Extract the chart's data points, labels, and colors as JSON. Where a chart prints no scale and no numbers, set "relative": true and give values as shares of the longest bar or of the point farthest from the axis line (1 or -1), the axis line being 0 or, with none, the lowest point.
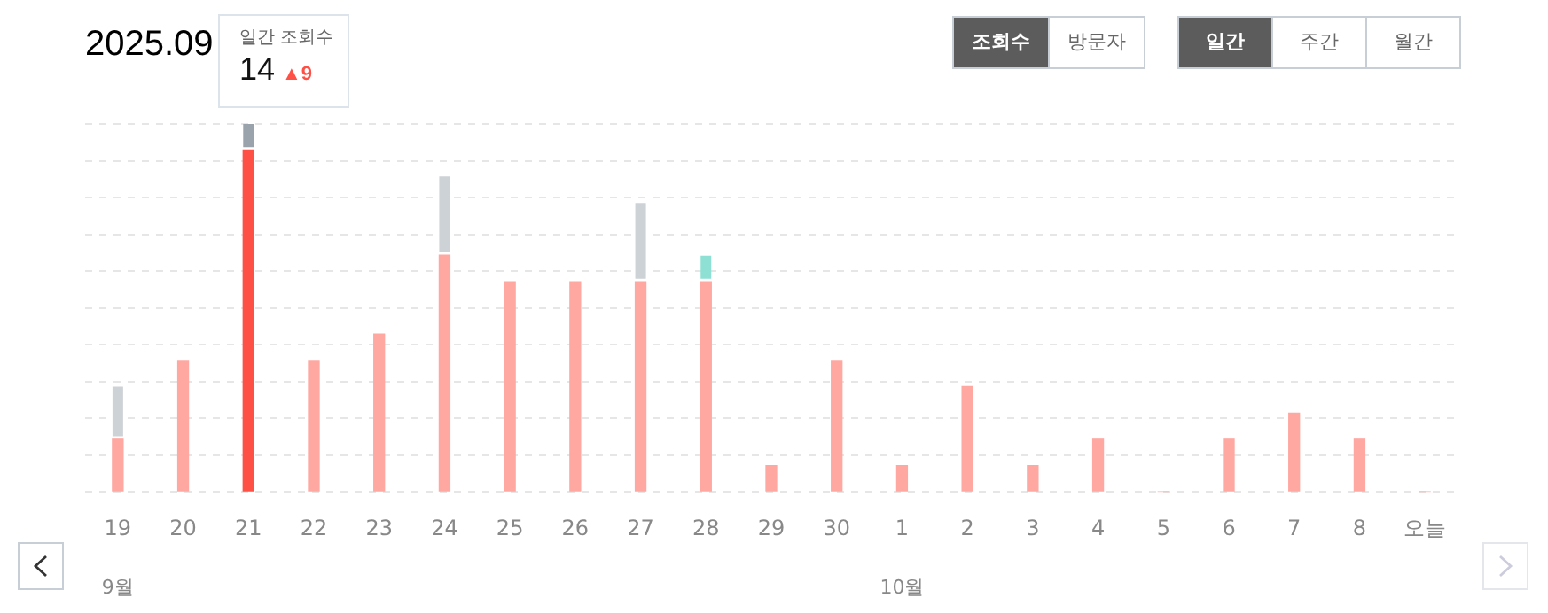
{
  "chart_data": {
    "type": "bar",
    "title": "2025.09",
    "stacked": true,
    "relative": true,
    "categories": [
      "19",
      "20",
      "21",
      "22",
      "23",
      "24",
      "25",
      "26",
      "27",
      "28",
      "29",
      "30",
      "1",
      "2",
      "3",
      "4",
      "5",
      "6",
      "7",
      "8",
      "오늘"
    ],
    "series": [
      {
        "colors": [
          "#ffa8a2",
          "#ffa8a2",
          "#ff5045",
          "#ffa8a2",
          "#ffa8a2",
          "#ffa8a2",
          "#ffa8a2",
          "#ffa8a2",
          "#ffa8a2",
          "#ffa8a2",
          "#ffa8a2",
          "#ffa8a2",
          "#ffa8a2",
          "#ffa8a2",
          "#ffa8a2",
          "#ffa8a2",
          "#ffa8a2",
          "#ffa8a2",
          "#ffa8a2",
          "#ffa8a2",
          "#ffa8a2"
        ],
        "values": [
          0.143,
          0.357,
          0.929,
          0.357,
          0.429,
          0.643,
          0.571,
          0.571,
          0.571,
          0.571,
          0.071,
          0.357,
          0.071,
          0.286,
          0.071,
          0.143,
          0,
          0.143,
          0.214,
          0.143,
          0
        ]
      },
      {
        "colors": [
          "#cdd2d6",
          "#cdd2d6",
          "#9aa3ab",
          "#cdd2d6",
          "#cdd2d6",
          "#cdd2d6",
          "#cdd2d6",
          "#cdd2d6",
          "#cdd2d6",
          "#cdd2d6",
          "#cdd2d6",
          "#cdd2d6",
          "#cdd2d6",
          "#cdd2d6",
          "#cdd2d6",
          "#cdd2d6",
          "#cdd2d6",
          "#cdd2d6",
          "#cdd2d6",
          "#cdd2d6",
          "#cdd2d6"
        ],
        "values": [
          0.143,
          null,
          0.071,
          null,
          null,
          0.214,
          null,
          null,
          0.214,
          null,
          null,
          null,
          null,
          null,
          null,
          null,
          null,
          null,
          null,
          null,
          null
        ]
      },
      {
        "color": "#8ee0d4",
        "values": [
          null,
          null,
          null,
          null,
          null,
          null,
          null,
          null,
          null,
          0.071,
          null,
          null,
          null,
          null,
          null,
          null,
          null,
          null,
          null,
          null,
          null
        ]
      }
    ],
    "tick_labels": "x",
    "grid": "y",
    "legend": false,
    "annotations": [
      "일간 조회수",
      "14",
      "▲9",
      "조회수",
      "방문자",
      "일간",
      "주간",
      "월간",
      "9월",
      "10월"
    ]
  }
}
